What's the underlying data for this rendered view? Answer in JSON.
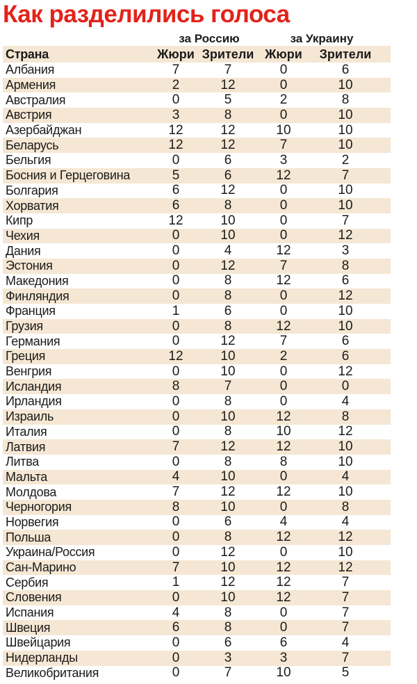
{
  "title": "Как разделились голоса",
  "groups": {
    "russia": "за Россию",
    "ukraine": "за Украину"
  },
  "headers": {
    "country": "Страна",
    "ru_jury": "Жюри",
    "ru_viewers": "Зрители",
    "ua_jury": "Жюри",
    "ua_viewers": "Зрители"
  },
  "colors": {
    "title": "#e2231a",
    "stripe": "#f5e7d3"
  },
  "rows": [
    {
      "country": "Албания",
      "ru_jury": "7",
      "ru_viewers": "7",
      "ua_jury": "0",
      "ua_viewers": "6"
    },
    {
      "country": "Армения",
      "ru_jury": "2",
      "ru_viewers": "12",
      "ua_jury": "0",
      "ua_viewers": "10"
    },
    {
      "country": "Австралия",
      "ru_jury": "0",
      "ru_viewers": "5",
      "ua_jury": "2",
      "ua_viewers": "8"
    },
    {
      "country": "Австрия",
      "ru_jury": "3",
      "ru_viewers": "8",
      "ua_jury": "0",
      "ua_viewers": "10"
    },
    {
      "country": "Азербайджан",
      "ru_jury": "12",
      "ru_viewers": "12",
      "ua_jury": "10",
      "ua_viewers": "10"
    },
    {
      "country": "Беларусь",
      "ru_jury": "12",
      "ru_viewers": "12",
      "ua_jury": "7",
      "ua_viewers": "10"
    },
    {
      "country": "Бельгия",
      "ru_jury": "0",
      "ru_viewers": "6",
      "ua_jury": "3",
      "ua_viewers": "2"
    },
    {
      "country": "Босния и Герцеговина",
      "ru_jury": "5",
      "ru_viewers": "6",
      "ua_jury": "12",
      "ua_viewers": "7"
    },
    {
      "country": "Болгария",
      "ru_jury": "6",
      "ru_viewers": "12",
      "ua_jury": "0",
      "ua_viewers": "10"
    },
    {
      "country": "Хорватия",
      "ru_jury": "6",
      "ru_viewers": "8",
      "ua_jury": "0",
      "ua_viewers": "10"
    },
    {
      "country": "Кипр",
      "ru_jury": "12",
      "ru_viewers": "10",
      "ua_jury": "0",
      "ua_viewers": "7"
    },
    {
      "country": "Чехия",
      "ru_jury": "0",
      "ru_viewers": "10",
      "ua_jury": "0",
      "ua_viewers": "12"
    },
    {
      "country": "Дания",
      "ru_jury": "0",
      "ru_viewers": "4",
      "ua_jury": "12",
      "ua_viewers": "3"
    },
    {
      "country": "Эстония",
      "ru_jury": "0",
      "ru_viewers": "12",
      "ua_jury": "7",
      "ua_viewers": "8"
    },
    {
      "country": "Македония",
      "ru_jury": "0",
      "ru_viewers": "8",
      "ua_jury": "12",
      "ua_viewers": "6"
    },
    {
      "country": "Финляндия",
      "ru_jury": "0",
      "ru_viewers": "8",
      "ua_jury": "0",
      "ua_viewers": "12"
    },
    {
      "country": "Франция",
      "ru_jury": "1",
      "ru_viewers": "6",
      "ua_jury": "0",
      "ua_viewers": "10"
    },
    {
      "country": "Грузия",
      "ru_jury": "0",
      "ru_viewers": "8",
      "ua_jury": "12",
      "ua_viewers": "10"
    },
    {
      "country": "Германия",
      "ru_jury": "0",
      "ru_viewers": "12",
      "ua_jury": "7",
      "ua_viewers": "6"
    },
    {
      "country": "Греция",
      "ru_jury": "12",
      "ru_viewers": "10",
      "ua_jury": "2",
      "ua_viewers": "6"
    },
    {
      "country": "Венгрия",
      "ru_jury": "0",
      "ru_viewers": "10",
      "ua_jury": "0",
      "ua_viewers": "12"
    },
    {
      "country": "Исландия",
      "ru_jury": "8",
      "ru_viewers": "7",
      "ua_jury": "0",
      "ua_viewers": "0"
    },
    {
      "country": "Ирландия",
      "ru_jury": "0",
      "ru_viewers": "8",
      "ua_jury": "0",
      "ua_viewers": "4"
    },
    {
      "country": "Израиль",
      "ru_jury": "0",
      "ru_viewers": "10",
      "ua_jury": "12",
      "ua_viewers": "8"
    },
    {
      "country": "Италия",
      "ru_jury": "0",
      "ru_viewers": "8",
      "ua_jury": "10",
      "ua_viewers": "12"
    },
    {
      "country": "Латвия",
      "ru_jury": "7",
      "ru_viewers": "12",
      "ua_jury": "12",
      "ua_viewers": "10"
    },
    {
      "country": "Литва",
      "ru_jury": "0",
      "ru_viewers": "8",
      "ua_jury": "8",
      "ua_viewers": "10"
    },
    {
      "country": "Мальта",
      "ru_jury": "4",
      "ru_viewers": "10",
      "ua_jury": "0",
      "ua_viewers": "4"
    },
    {
      "country": "Молдова",
      "ru_jury": "7",
      "ru_viewers": "12",
      "ua_jury": "12",
      "ua_viewers": "10"
    },
    {
      "country": "Черногория",
      "ru_jury": "8",
      "ru_viewers": "10",
      "ua_jury": "0",
      "ua_viewers": "8"
    },
    {
      "country": "Норвегия",
      "ru_jury": "0",
      "ru_viewers": "6",
      "ua_jury": "4",
      "ua_viewers": "4"
    },
    {
      "country": "Польша",
      "ru_jury": "0",
      "ru_viewers": "8",
      "ua_jury": "12",
      "ua_viewers": "12"
    },
    {
      "country": "Украина/Россия",
      "ru_jury": "0",
      "ru_viewers": "12",
      "ua_jury": "0",
      "ua_viewers": "10"
    },
    {
      "country": "Сан-Марино",
      "ru_jury": "7",
      "ru_viewers": "10",
      "ua_jury": "12",
      "ua_viewers": "12"
    },
    {
      "country": "Сербия",
      "ru_jury": "1",
      "ru_viewers": "12",
      "ua_jury": "12",
      "ua_viewers": "7"
    },
    {
      "country": "Словения",
      "ru_jury": "0",
      "ru_viewers": "10",
      "ua_jury": "12",
      "ua_viewers": "7"
    },
    {
      "country": "Испания",
      "ru_jury": "4",
      "ru_viewers": "8",
      "ua_jury": "0",
      "ua_viewers": "7"
    },
    {
      "country": "Швеция",
      "ru_jury": "6",
      "ru_viewers": "8",
      "ua_jury": "0",
      "ua_viewers": "7"
    },
    {
      "country": "Швейцария",
      "ru_jury": "0",
      "ru_viewers": "6",
      "ua_jury": "6",
      "ua_viewers": "4"
    },
    {
      "country": "Нидерланды",
      "ru_jury": "0",
      "ru_viewers": "3",
      "ua_jury": "3",
      "ua_viewers": "7"
    },
    {
      "country": "Великобритания",
      "ru_jury": "0",
      "ru_viewers": "7",
      "ua_jury": "10",
      "ua_viewers": "5"
    }
  ]
}
